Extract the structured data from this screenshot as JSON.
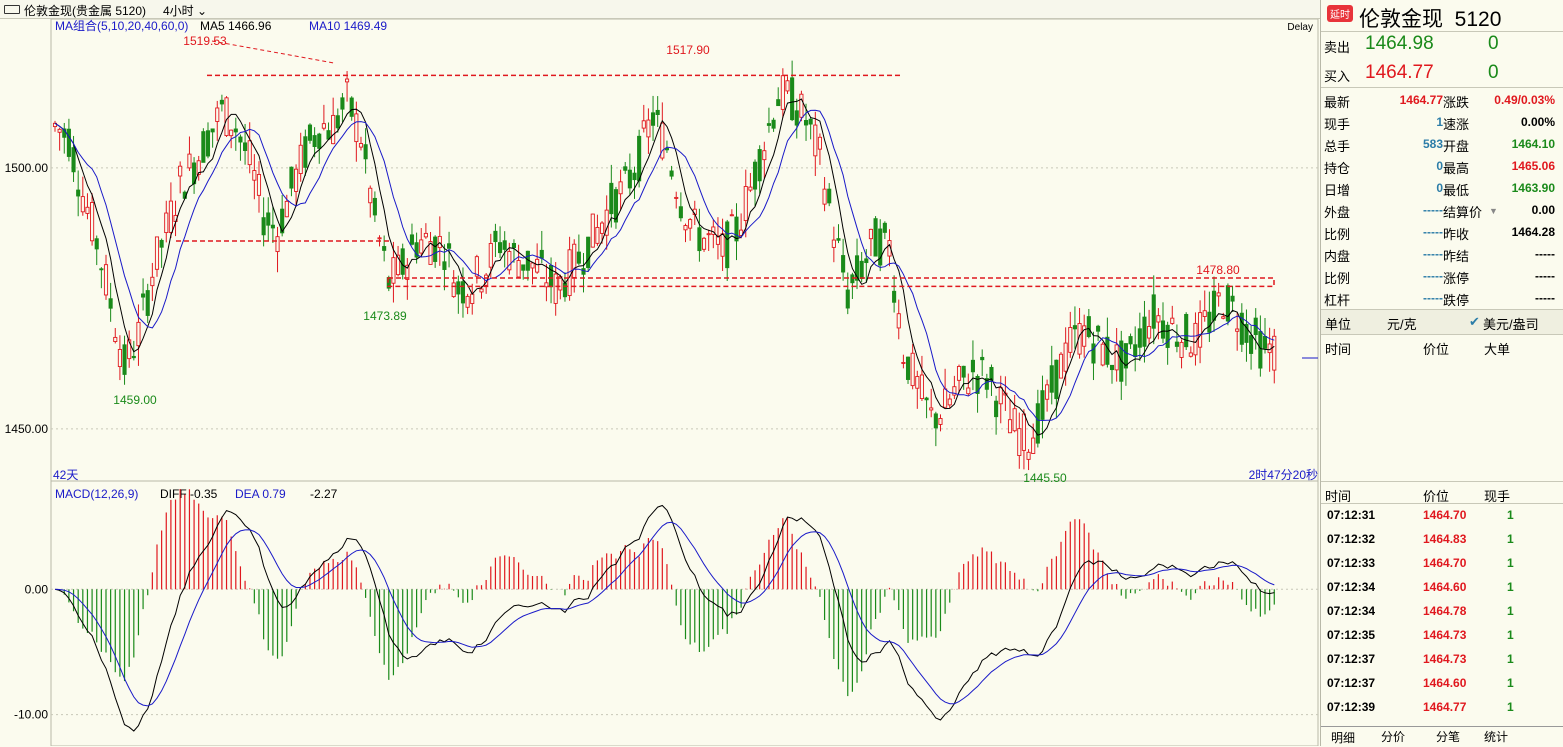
{
  "window": {
    "title": "伦敦金现(贵金属 5120)",
    "period": "4小时"
  },
  "price_panel": {
    "ma_label": "MA组合(5,10,20,40,60,0)",
    "ma5": "MA5 1466.96",
    "ma10": "MA10 1469.49",
    "delay": "Delay",
    "y_ticks": [
      "1500.00",
      "1450.00"
    ],
    "days": "42天",
    "countdown": "2时47分20秒",
    "annotations": [
      "1519.53",
      "1517.90",
      "1459.00",
      "1473.89",
      "1478.80",
      "1445.50"
    ]
  },
  "macd_panel": {
    "label": "MACD(12,26,9)",
    "diff": "DIFF -0.35",
    "dea": "DEA 0.79",
    "macd": "-2.27",
    "y_ticks": [
      "0.00",
      "-10.00"
    ]
  },
  "chart_data": [
    {
      "type": "candlestick",
      "title": "伦敦金现",
      "period": "4小时",
      "ylim": [
        1440,
        1527
      ],
      "y_ticks": [
        1500.0,
        1450.0
      ],
      "ma_values": {
        "MA5": 1466.96,
        "MA10": 1469.49
      },
      "labeled_points": {
        "high_1": 1519.53,
        "high_2": 1517.9,
        "low_1": 1459.0,
        "low_2": 1473.89,
        "recent_high": 1478.8,
        "low_3": 1445.5
      },
      "close": [
        1508,
        1506,
        1495,
        1486,
        1474,
        1462,
        1468,
        1480,
        1488,
        1497,
        1501,
        1506,
        1511,
        1508,
        1501,
        1491,
        1488,
        1496,
        1503,
        1508,
        1508,
        1513,
        1506,
        1490,
        1478,
        1481,
        1486,
        1486,
        1485,
        1477,
        1478,
        1481,
        1486,
        1483,
        1482,
        1480,
        1477,
        1480,
        1484,
        1488,
        1493,
        1496,
        1502,
        1510,
        1504,
        1494,
        1488,
        1486,
        1484,
        1488,
        1496,
        1505,
        1514,
        1513,
        1509,
        1502,
        1488,
        1476,
        1481,
        1486,
        1485,
        1465,
        1458,
        1452,
        1454,
        1458,
        1461,
        1460,
        1455,
        1450,
        1448,
        1453,
        1460,
        1466,
        1469,
        1466,
        1464,
        1462,
        1468,
        1472,
        1470,
        1468,
        1467,
        1471,
        1475,
        1472,
        1468,
        1465
      ]
    },
    {
      "type": "macd",
      "title": "MACD(12,26,9)",
      "ylim": [
        -12.5,
        8
      ],
      "y_ticks": [
        0.0,
        -10.0
      ],
      "current": {
        "DIFF": -0.35,
        "DEA": 0.79,
        "MACD": -2.27
      }
    }
  ],
  "quote": {
    "badge": "延时",
    "name": "伦敦金现",
    "code": "5120",
    "sell_label": "卖出",
    "sell_price": "1464.98",
    "sell_vol": "0",
    "buy_label": "买入",
    "buy_price": "1464.77",
    "buy_vol": "0",
    "left": [
      {
        "label": "最新",
        "value": "1464.77",
        "color": "red"
      },
      {
        "label": "现手",
        "value": "1",
        "color": "teal"
      },
      {
        "label": "总手",
        "value": "583",
        "color": "teal"
      },
      {
        "label": "持仓",
        "value": "0",
        "color": "teal"
      },
      {
        "label": "日增",
        "value": "0",
        "color": "teal"
      },
      {
        "label": "外盘",
        "value": "-----",
        "color": "teal"
      },
      {
        "label": "比例",
        "value": "-----",
        "color": "teal"
      },
      {
        "label": "内盘",
        "value": "-----",
        "color": "teal"
      },
      {
        "label": "比例",
        "value": "-----",
        "color": "teal"
      },
      {
        "label": "杠杆",
        "value": "-----",
        "color": "teal"
      }
    ],
    "right": [
      {
        "label": "涨跌",
        "value": "0.49/0.03%",
        "color": "red"
      },
      {
        "label": "速涨",
        "value": "0.00%",
        "color": "blk"
      },
      {
        "label": "开盘",
        "value": "1464.10",
        "color": "green"
      },
      {
        "label": "最高",
        "value": "1465.06",
        "color": "red"
      },
      {
        "label": "最低",
        "value": "1463.90",
        "color": "green"
      },
      {
        "label": "结算价",
        "value": "0.00",
        "color": "blk"
      },
      {
        "label": "昨收",
        "value": "1464.28",
        "color": "blk"
      },
      {
        "label": "昨结",
        "value": "-----",
        "color": "blk"
      },
      {
        "label": "涨停",
        "value": "-----",
        "color": "blk"
      },
      {
        "label": "跌停",
        "value": "-----",
        "color": "blk"
      }
    ],
    "unit_label": "单位",
    "unit_value": "元/克",
    "usd_label": "美元/盎司",
    "big_headers": [
      "时间",
      "价位",
      "大单"
    ],
    "tick_headers": [
      "时间",
      "价位",
      "现手"
    ],
    "ticks": [
      {
        "time": "07:12:31",
        "price": "1464.70",
        "vol": "1"
      },
      {
        "time": "07:12:32",
        "price": "1464.83",
        "vol": "1"
      },
      {
        "time": "07:12:33",
        "price": "1464.70",
        "vol": "1"
      },
      {
        "time": "07:12:34",
        "price": "1464.60",
        "vol": "1"
      },
      {
        "time": "07:12:34",
        "price": "1464.78",
        "vol": "1"
      },
      {
        "time": "07:12:35",
        "price": "1464.73",
        "vol": "1"
      },
      {
        "time": "07:12:37",
        "price": "1464.73",
        "vol": "1"
      },
      {
        "time": "07:12:37",
        "price": "1464.60",
        "vol": "1"
      },
      {
        "time": "07:12:39",
        "price": "1464.77",
        "vol": "1"
      }
    ],
    "tabs": [
      "明细",
      "分价",
      "分笔",
      "统计"
    ]
  }
}
